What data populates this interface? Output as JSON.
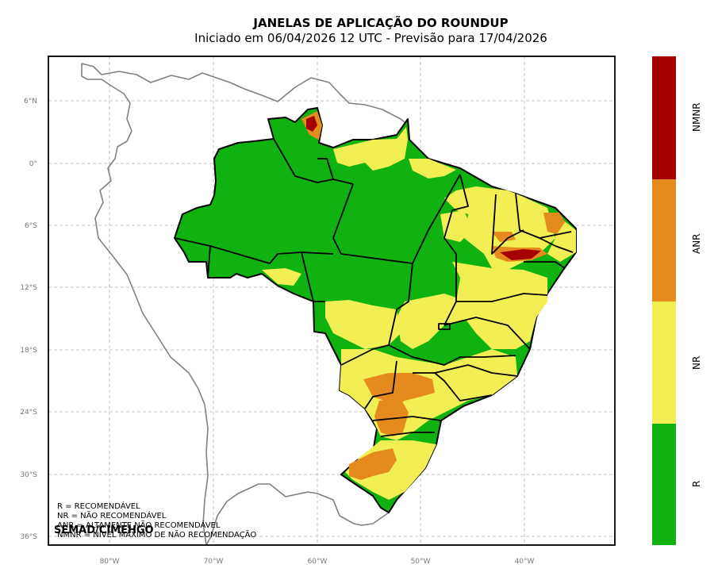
{
  "title": "JANELAS DE APLICAÇÃO DO ROUNDUP",
  "subtitle": "Iniciado em 06/04/2026 12 UTC - Previsão para 17/04/2026",
  "lat_ticks": [
    "6°N",
    "0°",
    "6°S",
    "12°S",
    "18°S",
    "24°S",
    "30°S",
    "36°S"
  ],
  "lon_ticks": [
    "80°W",
    "70°W",
    "60°W",
    "50°W",
    "40°W"
  ],
  "legend_lines": [
    "R = RECOMENDÁVEL",
    "NR = NÃO RECOMENDÁVEL",
    "ANR = ALTAMENTE NÃO RECOMENDÁVEL",
    "NMNR = NÍVEL MÁXIMO DE NÃO RECOMENDAÇÃO"
  ],
  "credit": "SEMAD/CIMEHGO",
  "colorbar": [
    {
      "label": "NMNR",
      "color": "#a40000"
    },
    {
      "label": "ANR",
      "color": "#e58a1c"
    },
    {
      "label": "NR",
      "color": "#f2ef55"
    },
    {
      "label": "R",
      "color": "#10b210"
    }
  ],
  "colors": {
    "border": "#808080",
    "grid": "#b5b5b5",
    "state_line": "#000000"
  }
}
